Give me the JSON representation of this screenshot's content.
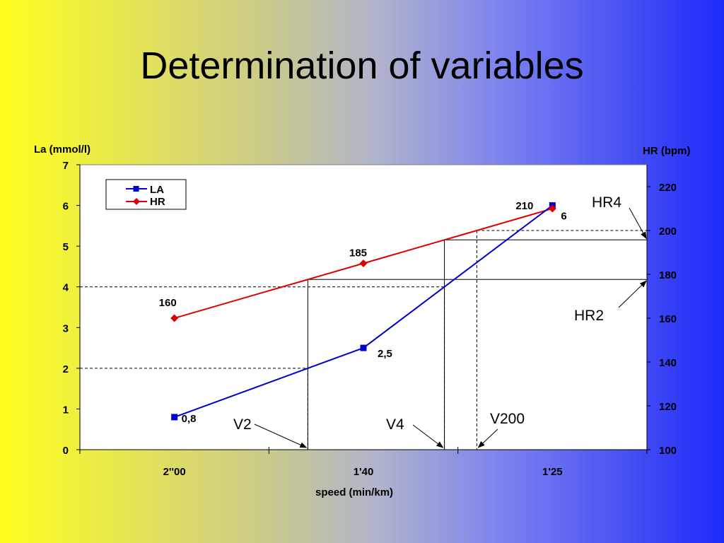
{
  "slide": {
    "title": "Determination of variables"
  },
  "chart_data": {
    "type": "line",
    "categories": [
      "2''00",
      "1'40",
      "1'25"
    ],
    "xlabel": "speed (min/km)",
    "ylabel": "La (mmol/l)",
    "y2label": "HR (bpm)",
    "ylim": [
      0,
      7
    ],
    "y2lim": [
      100,
      230
    ],
    "yticks": [
      "0",
      "1",
      "2",
      "3",
      "4",
      "5",
      "6",
      "7"
    ],
    "y2ticks": [
      "100",
      "120",
      "140",
      "160",
      "180",
      "200",
      "220"
    ],
    "grid": false,
    "legend_position": "top-left",
    "series": [
      {
        "name": "LA",
        "axis": "left",
        "color": "#0000cc",
        "marker": "square",
        "values": [
          0.8,
          2.5,
          6
        ],
        "labels": [
          "0,8",
          "2,5",
          "6"
        ]
      },
      {
        "name": "HR",
        "axis": "right",
        "color": "#dd0000",
        "marker": "diamond",
        "values": [
          160,
          185,
          210
        ],
        "labels": [
          "160",
          "185",
          "210"
        ]
      }
    ],
    "annotations": [
      {
        "text": "V2",
        "la_level": 2
      },
      {
        "text": "V4",
        "la_level": 4
      },
      {
        "text": "V200",
        "hr_level": 200
      },
      {
        "text": "HR2"
      },
      {
        "text": "HR4"
      }
    ]
  }
}
